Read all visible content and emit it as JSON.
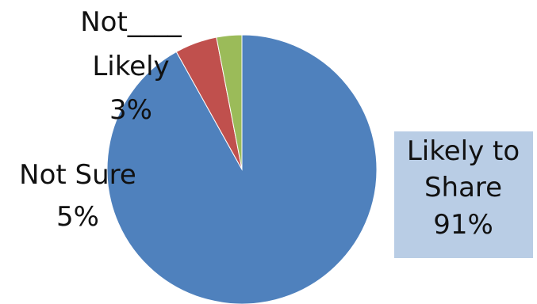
{
  "chart_data": {
    "type": "pie",
    "title": "",
    "slices": [
      {
        "label_lines": [
          "Likely to",
          "Share",
          "91%"
        ],
        "value": 91,
        "color": "#4f81bd"
      },
      {
        "label_lines": [
          "Not Sure",
          "5%"
        ],
        "value": 5,
        "color": "#c0504d"
      },
      {
        "label_lines": [
          "Not____",
          "Likely",
          "3%"
        ],
        "value": 3,
        "color": "#9bbb59"
      }
    ]
  }
}
